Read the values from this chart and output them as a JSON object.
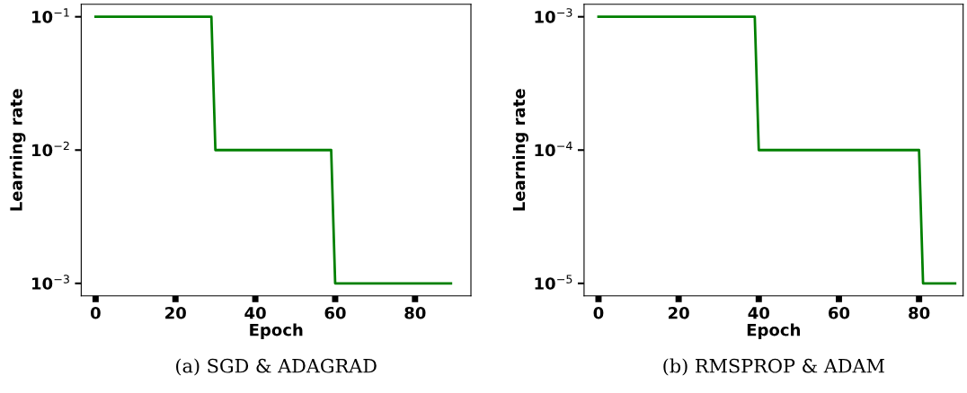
{
  "chart_data": [
    {
      "type": "line",
      "xlabel": "Epoch",
      "ylabel": "Learning rate",
      "log": "y",
      "grid": false,
      "marker": "none",
      "line_style": "solid",
      "series": [
        {
          "color": "#008000",
          "x": [
            0,
            29,
            30,
            59,
            60,
            89
          ],
          "values": [
            0.1,
            0.1,
            0.01,
            0.01,
            0.001,
            0.001
          ]
        }
      ],
      "xlim": [
        -3.6,
        94
      ],
      "xticks": [
        0,
        20,
        40,
        60,
        80
      ],
      "ylim": [
        0.000805,
        0.124
      ],
      "yticks": [
        {
          "value": 0.001,
          "label": "10$^{−3}$"
        },
        {
          "value": 0.01,
          "label": "10$^{−2}$"
        },
        {
          "value": 0.1,
          "label": "10$^{−1}$"
        }
      ],
      "annotations": [
        "(a) SGD & ADAGRAD"
      ]
    },
    {
      "type": "line",
      "xlabel": "Epoch",
      "ylabel": "Learning rate",
      "log": "y",
      "grid": false,
      "marker": "none",
      "line_style": "solid",
      "series": [
        {
          "color": "#008000",
          "x": [
            0,
            39,
            40,
            80,
            81,
            89
          ],
          "values": [
            0.001,
            0.001,
            0.0001,
            0.0001,
            1e-05,
            1e-05
          ]
        }
      ],
      "xlim": [
        -3.6,
        91
      ],
      "xticks": [
        0,
        20,
        40,
        60,
        80
      ],
      "ylim": [
        8.05e-06,
        0.00124
      ],
      "yticks": [
        {
          "value": 1e-05,
          "label": "10$^{−5}$"
        },
        {
          "value": 0.0001,
          "label": "10$^{−4}$"
        },
        {
          "value": 0.001,
          "label": "10$^{−3}$"
        }
      ],
      "annotations": [
        "(b) RMSPROP & ADAM"
      ]
    }
  ]
}
